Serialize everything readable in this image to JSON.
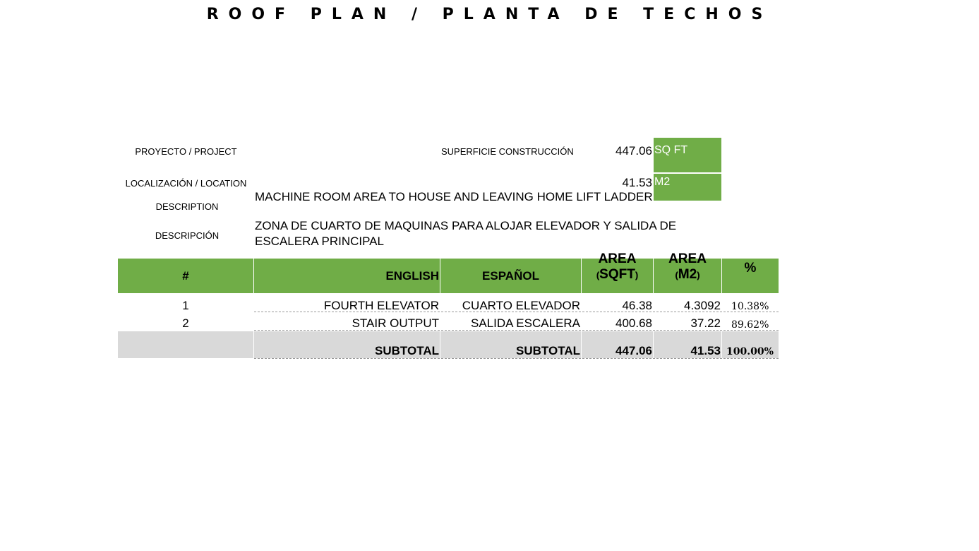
{
  "title": "ROOF PLAN / PLANTA DE TECHOS",
  "info": {
    "project_label": "PROYECTO / PROJECT",
    "location_label": "LOCALIZACIÓN / LOCATION",
    "surface_label": "SUPERFICIE CONSTRUCCIÓN",
    "surface_sqft": "447.06",
    "unit_sqft": "SQ FT",
    "surface_m2": "41.53",
    "unit_m2": "M2",
    "description_label": "DESCRIPTION",
    "description_text": "MACHINE ROOM AREA TO HOUSE AND LEAVING HOME LIFT LADDER",
    "descripcion_label": "DESCRIPCIÓN",
    "descripcion_text": "ZONA DE CUARTO DE MAQUINAS PARA ALOJAR ELEVADOR Y SALIDA DE ESCALERA PRINCIPAL"
  },
  "table": {
    "headers": {
      "num": "#",
      "english": "ENGLISH",
      "espanol": "ESPAÑOL",
      "area_sqft_top": "AREA",
      "area_sqft_bottom": "SQFT",
      "area_m2_top": "AREA",
      "area_m2_bottom": "M2",
      "pct": "%",
      "paren_open": "(",
      "paren_close": ")"
    },
    "rows": [
      {
        "num": "1",
        "english": "FOURTH ELEVATOR",
        "espanol": "CUARTO ELEVADOR",
        "sqft": "46.38",
        "m2": "4.3092",
        "pct": "10.38%"
      },
      {
        "num": "2",
        "english": "STAIR OUTPUT",
        "espanol": "SALIDA ESCALERA",
        "sqft": "400.68",
        "m2": "37.22",
        "pct": "89.62%"
      }
    ],
    "subtotal": {
      "english": "SUBTOTAL",
      "espanol": "SUBTOTAL",
      "sqft": "447.06",
      "m2": "41.53",
      "pct": "100.00%"
    }
  },
  "colors": {
    "header_green": "#70ad47",
    "subtotal_grey": "#d9d9d9"
  }
}
